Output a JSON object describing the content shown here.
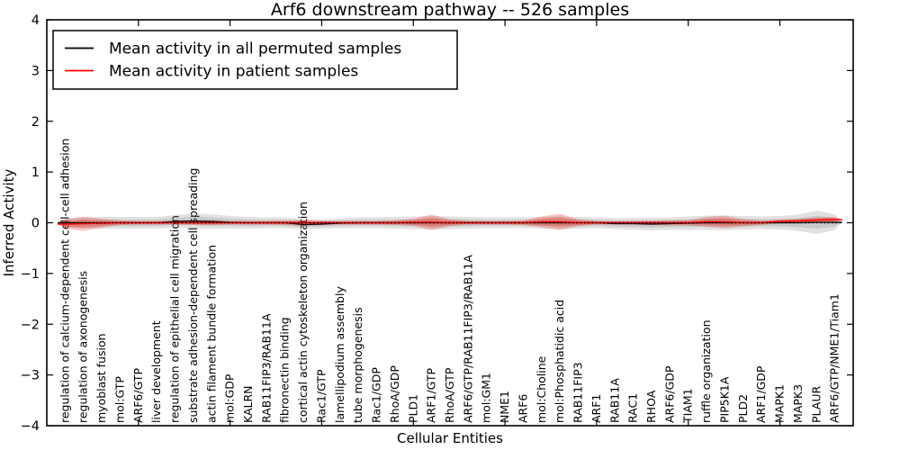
{
  "figure": {
    "background": "#ffffff"
  },
  "chart_data": {
    "type": "violin",
    "title": "Arf6 downstream pathway -- 526 samples",
    "xlabel": "Cellular Entities",
    "ylabel": "Inferred Activity",
    "ylim": [
      -4,
      4
    ],
    "xlim": [
      0,
      44
    ],
    "grid": false,
    "legend_position": "upper-left",
    "yticks": [
      {
        "v": 4,
        "label": "4"
      },
      {
        "v": 3,
        "label": "3"
      },
      {
        "v": 2,
        "label": "2"
      },
      {
        "v": 1,
        "label": "1"
      },
      {
        "v": 0,
        "label": "0"
      },
      {
        "v": -1,
        "label": "−1"
      },
      {
        "v": -2,
        "label": "−2"
      },
      {
        "v": -3,
        "label": "−3"
      },
      {
        "v": -4,
        "label": "−4"
      }
    ],
    "x_major_ticks": [
      5,
      10,
      15,
      20,
      25,
      30,
      35,
      40
    ],
    "zero_line": {
      "y": 0,
      "style": "dotted",
      "color": "#000000"
    },
    "legend": {
      "items": [
        {
          "label": "Mean activity in all permuted samples",
          "color": "#000000"
        },
        {
          "label": "Mean activity in patient samples",
          "color": "#ff0000"
        }
      ]
    },
    "entities": [
      "regulation of calcium-dependent cell-cell adhesion",
      "regulation of axonogenesis",
      "myoblast fusion",
      "mol:GTP",
      "ARF6/GTP",
      "liver development",
      "regulation of epithelial cell migration",
      "substrate adhesion-dependent cell spreading",
      "actin filament bundle formation",
      "mol:GDP",
      "KALRN",
      "RAB11FIP3/RAB11A",
      "fibronectin binding",
      "cortical actin cytoskeleton organization",
      "Rac1/GTP",
      "lamellipodium assembly",
      "tube morphogenesis",
      "Rac1/GDP",
      "RhoA/GDP",
      "PLD1",
      "ARF1/GTP",
      "RhoA/GTP",
      "ARF6/GTP/RAB11FIP3/RAB11A",
      "mol:GM1",
      "NME1",
      "ARF6",
      "mol:Choline",
      "mol:Phosphatidic acid",
      "RAB11FIP3",
      "ARF1",
      "RAB11A",
      "RAC1",
      "RHOA",
      "ARF6/GDP",
      "TIAM1",
      "ruffle organization",
      "PIP5K1A",
      "PLD2",
      "ARF1/GDP",
      "MAPK1",
      "MAPK3",
      "PLAUR",
      "ARF6/GTP/NME1/Tiam1"
    ],
    "series": [
      {
        "name": "permuted",
        "line_color": "#000000",
        "fill_color": "#787878",
        "mean": [
          0,
          0,
          0,
          0,
          0,
          0,
          0.027,
          0.035,
          0.027,
          0.009,
          0,
          0,
          0,
          -0.035,
          -0.027,
          -0.009,
          0,
          0,
          0,
          0,
          0,
          0,
          0,
          0,
          0,
          0,
          0,
          0,
          0,
          0,
          -0.018,
          -0.018,
          -0.027,
          -0.018,
          -0.009,
          0,
          0,
          0,
          0,
          0,
          0,
          0.009,
          0.009
        ],
        "halfwidth": [
          0.089,
          0.106,
          0.115,
          0.115,
          0.115,
          0.115,
          0.124,
          0.151,
          0.142,
          0.124,
          0.115,
          0.106,
          0.106,
          0.098,
          0.089,
          0.098,
          0.106,
          0.106,
          0.115,
          0.124,
          0.133,
          0.124,
          0.115,
          0.106,
          0.106,
          0.106,
          0.115,
          0.124,
          0.115,
          0.106,
          0.106,
          0.115,
          0.124,
          0.124,
          0.133,
          0.142,
          0.142,
          0.133,
          0.124,
          0.133,
          0.16,
          0.23,
          0.155
        ]
      },
      {
        "name": "patient",
        "line_color": "#ff0000",
        "fill_color": "#e82417",
        "mean": [
          -0.027,
          -0.018,
          -0.009,
          0,
          0,
          0,
          0,
          0,
          0,
          0,
          0,
          0,
          0,
          0,
          0,
          0,
          0,
          0,
          0,
          0.009,
          0.009,
          0,
          0,
          0,
          0,
          0,
          0.018,
          0.018,
          0,
          0,
          0,
          0,
          0,
          0,
          0,
          0.018,
          0.018,
          0,
          0,
          0.027,
          0.035,
          0.053,
          0.062
        ],
        "halfwidth": [
          0.089,
          0.142,
          0.089,
          0.044,
          0.035,
          0.035,
          0.035,
          0.044,
          0.053,
          0.035,
          0.035,
          0.035,
          0.044,
          0.062,
          0.044,
          0.035,
          0.035,
          0.035,
          0.044,
          0.071,
          0.151,
          0.071,
          0.035,
          0.035,
          0.035,
          0.044,
          0.106,
          0.16,
          0.071,
          0.035,
          0.035,
          0.035,
          0.044,
          0.053,
          0.053,
          0.098,
          0.124,
          0.071,
          0.044,
          0.035,
          0.044,
          0.053,
          0.053
        ]
      }
    ]
  }
}
